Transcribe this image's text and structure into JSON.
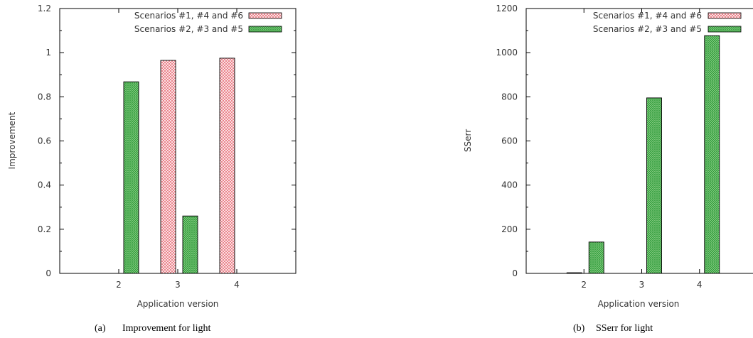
{
  "colors": {
    "red_hatch": "#e8707a",
    "green_hatch": "#3ca846",
    "axis": "#000000"
  },
  "chart_data": [
    {
      "type": "bar",
      "caption_label": "(a)",
      "caption_text": "Improvement for light",
      "xlabel": "Application version",
      "ylabel": "Improvement",
      "categories": [
        "2",
        "3",
        "4"
      ],
      "xlim": [
        1,
        5
      ],
      "ylim": [
        0,
        1.2
      ],
      "yticks": [
        "0",
        "0.2",
        "0.4",
        "0.6",
        "0.8",
        "1",
        "1.2"
      ],
      "legend_position": "top-right",
      "series": [
        {
          "name": "Scenarios #1, #4 and #6",
          "pattern": "red-crosshatch",
          "values": [
            0,
            0.965,
            0.975
          ]
        },
        {
          "name": "Scenarios #2, #3 and #5",
          "pattern": "green-crosshatch",
          "values": [
            0.868,
            0.26,
            0
          ]
        }
      ]
    },
    {
      "type": "bar",
      "caption_label": "(b)",
      "caption_text": "SSerr for light",
      "xlabel": "Application version",
      "ylabel": "SSerr",
      "categories": [
        "2",
        "3",
        "4"
      ],
      "xlim": [
        1,
        5
      ],
      "ylim": [
        0,
        1200
      ],
      "yticks": [
        "0",
        "200",
        "400",
        "600",
        "800",
        "1000",
        "1200"
      ],
      "legend_position": "top-right",
      "series": [
        {
          "name": "Scenarios #1, #4 and #6",
          "pattern": "red-crosshatch",
          "values": [
            3,
            0,
            0
          ]
        },
        {
          "name": "Scenarios #2, #3 and #5",
          "pattern": "green-crosshatch",
          "values": [
            142,
            795,
            1077
          ]
        }
      ]
    }
  ]
}
